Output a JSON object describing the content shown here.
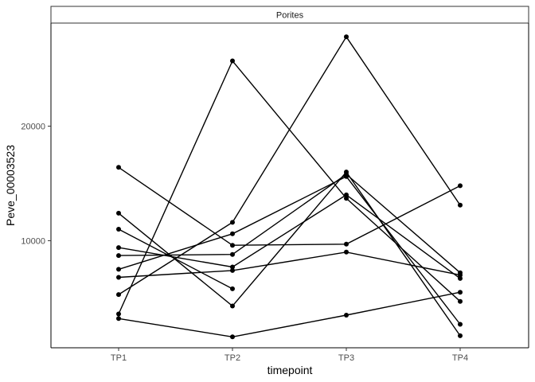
{
  "chart_data": {
    "type": "line",
    "facet_label": "Porites",
    "xlabel": "timepoint",
    "ylabel": "Peve_00003523",
    "categories": [
      "TP1",
      "TP2",
      "TP3",
      "TP4"
    ],
    "y_ticks": [
      10000,
      20000
    ],
    "y_tick_labels": [
      "10000",
      "20000"
    ],
    "ylim": [
      650,
      29000
    ],
    "grid": false,
    "series": [
      {
        "values": [
          16400,
          9600,
          9700,
          14800
        ]
      },
      {
        "values": [
          12400,
          4300,
          16000,
          1700
        ]
      },
      {
        "values": [
          11000,
          5800,
          null,
          null
        ]
      },
      {
        "values": [
          9400,
          7700,
          14000,
          6700
        ]
      },
      {
        "values": [
          8700,
          8800,
          15800,
          7200
        ]
      },
      {
        "values": [
          7500,
          10600,
          15600,
          2700
        ]
      },
      {
        "values": [
          6800,
          7400,
          9000,
          7000
        ]
      },
      {
        "values": [
          5300,
          11600,
          27800,
          13100
        ]
      },
      {
        "values": [
          3600,
          25700,
          13700,
          4700
        ]
      },
      {
        "values": [
          3200,
          1600,
          3500,
          5500
        ]
      }
    ]
  }
}
